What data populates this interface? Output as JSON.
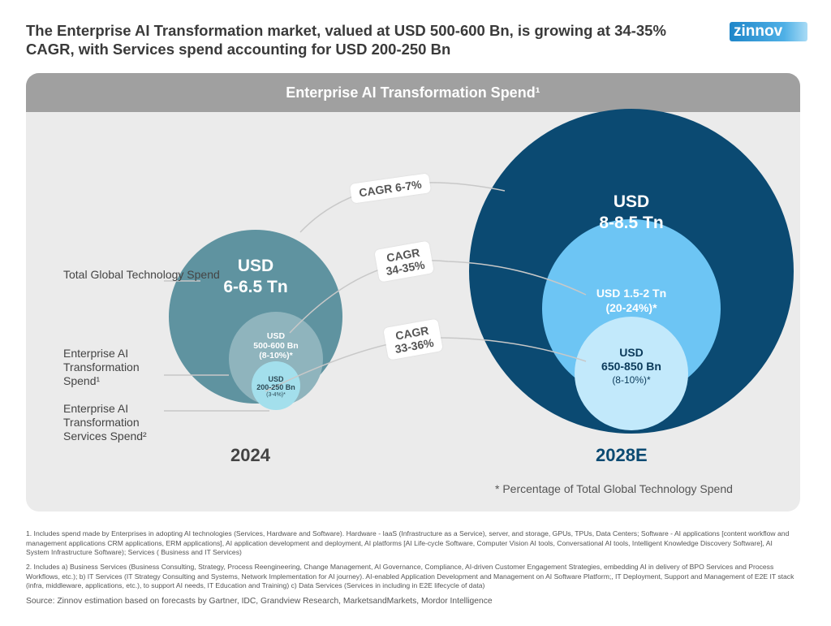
{
  "title": "The Enterprise AI Transformation market, valued at USD 500-600 Bn, is growing at 34-35% CAGR, with Services spend accounting for USD 200-250 Bn",
  "logo": "zinnov",
  "panel_title": "Enterprise AI Transformation Spend¹",
  "legend_labels": [
    "Total Global Technology Spend",
    "Enterprise AI Transformation Spend¹",
    "Enterprise AI Transformation Services Spend²"
  ],
  "y2024": {
    "year": "2024",
    "total": {
      "line1": "USD",
      "line2": "6-6.5 Tn"
    },
    "ai": {
      "line1": "USD",
      "line2": "500-600 Bn",
      "line3": "(8-10%)*"
    },
    "services": {
      "line1": "USD",
      "line2": "200-250 Bn",
      "line3": "(3-4%)*"
    }
  },
  "y2028": {
    "year": "2028E",
    "total": {
      "line1": "USD",
      "line2": "8-8.5 Tn"
    },
    "ai": {
      "line1": "USD 1.5-2 Tn",
      "line2": "(20-24%)*"
    },
    "services": {
      "line1": "USD",
      "line2": "650-850 Bn",
      "line3": "(8-10%)*"
    }
  },
  "cagr": {
    "total": "CAGR 6-7%",
    "ai_1": "CAGR",
    "ai_2": "34-35%",
    "services_1": "CAGR",
    "services_2": "33-36%"
  },
  "colors": {
    "total_2024": "#5f93a0",
    "ai_2024": "#8fb4bd",
    "services_2024": "#a3dfec",
    "total_2028": "#0b4a72",
    "ai_2028": "#6dc5f4",
    "services_2028": "#c2e9fb",
    "header": "#a0a0a0"
  },
  "note": "* Percentage of Total Global Technology Spend",
  "footnote1": "1. Includes spend made by Enterprises in adopting AI technologies (Services, Hardware and Software). Hardware - IaaS (Infrastructure as a Service), server, and storage, GPUs, TPUs, Data Centers; Software - AI applications [content workflow and management applications CRM applications, ERM applications], AI application development and deployment, AI platforms [AI Life-cycle Software, Computer Vision AI tools, Conversational AI tools, Intelligent Knowledge Discovery Software], AI System Infrastructure Software); Services ( Business and IT Services)",
  "footnote2": "2. Includes a) Business Services (Business Consulting, Strategy, Process Reengineering, Change Management, AI Governance, Compliance, AI-driven Customer Engagement Strategies, embedding AI in delivery of BPO Services and Process Workflows, etc.); b) IT Services (IT Strategy Consulting and Systems, Network Implementation for AI journey). AI-enabled Application Development and Management on AI Software Platform;, IT Deployment, Support and Management of E2E IT stack (infra, middleware, applications, etc.), to support AI needs, IT Education and Training) c) Data Services (Services in including in E2E lifecycle of data)",
  "source": "Source: Zinnov estimation based on forecasts by Gartner, IDC, Grandview Research, MarketsandMarkets, Mordor Intelligence"
}
